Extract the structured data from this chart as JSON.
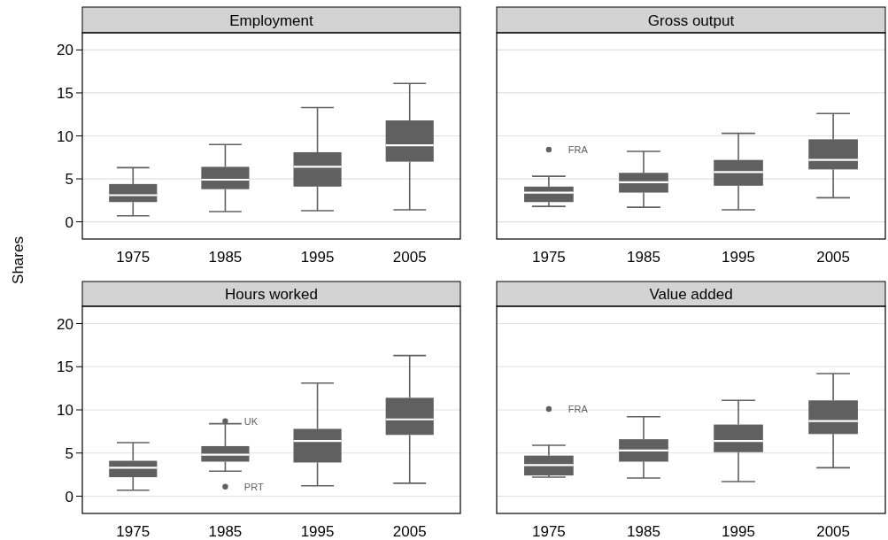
{
  "chart_data": [
    {
      "type": "box",
      "title": "Employment",
      "ylabel": "Shares",
      "categories": [
        "1975",
        "1985",
        "1995",
        "2005"
      ],
      "ylim": [
        -2,
        22
      ],
      "yticks": [
        0,
        5,
        10,
        15,
        20
      ],
      "grid": "y",
      "series": [
        {
          "color": "#606060",
          "boxes": [
            {
              "low": 0.7,
              "q1": 2.3,
              "median": 3.1,
              "q3": 4.4,
              "high": 6.3
            },
            {
              "low": 1.2,
              "q1": 3.8,
              "median": 4.9,
              "q3": 6.4,
              "high": 9.0
            },
            {
              "low": 1.3,
              "q1": 4.1,
              "median": 6.4,
              "q3": 8.1,
              "high": 13.3
            },
            {
              "low": 1.4,
              "q1": 7.0,
              "median": 8.9,
              "q3": 11.8,
              "high": 16.1
            }
          ]
        }
      ]
    },
    {
      "type": "box",
      "title": "Gross output",
      "categories": [
        "1975",
        "1985",
        "1995",
        "2005"
      ],
      "ylim": [
        -2,
        22
      ],
      "yticks": [
        0,
        5,
        10,
        15,
        20
      ],
      "grid": "y",
      "tick_labels": "x",
      "annotations": [
        "FRA"
      ],
      "series": [
        {
          "color": "#606060",
          "boxes": [
            {
              "low": 1.8,
              "q1": 2.3,
              "median": 3.4,
              "q3": 4.1,
              "high": 5.3,
              "outliers": [
                8.4
              ]
            },
            {
              "low": 1.7,
              "q1": 3.4,
              "median": 4.6,
              "q3": 5.7,
              "high": 8.2
            },
            {
              "low": 1.4,
              "q1": 4.2,
              "median": 5.8,
              "q3": 7.2,
              "high": 10.3
            },
            {
              "low": 2.8,
              "q1": 6.1,
              "median": 7.2,
              "q3": 9.6,
              "high": 12.6
            }
          ]
        }
      ]
    },
    {
      "type": "box",
      "title": "Hours worked",
      "categories": [
        "1975",
        "1985",
        "1995",
        "2005"
      ],
      "ylim": [
        -2,
        22
      ],
      "yticks": [
        0,
        5,
        10,
        15,
        20
      ],
      "grid": "y",
      "annotations": [
        "UK",
        "PRT"
      ],
      "series": [
        {
          "color": "#606060",
          "boxes": [
            {
              "low": 0.7,
              "q1": 2.2,
              "median": 3.3,
              "q3": 4.1,
              "high": 6.2
            },
            {
              "low": 2.9,
              "q1": 4.0,
              "median": 4.8,
              "q3": 5.8,
              "high": 8.4,
              "outliers": [
                8.7,
                1.1
              ]
            },
            {
              "low": 1.2,
              "q1": 3.9,
              "median": 6.4,
              "q3": 7.8,
              "high": 13.1
            },
            {
              "low": 1.5,
              "q1": 7.1,
              "median": 8.9,
              "q3": 11.4,
              "high": 16.3
            }
          ]
        }
      ]
    },
    {
      "type": "box",
      "title": "Value added",
      "categories": [
        "1975",
        "1985",
        "1995",
        "2005"
      ],
      "ylim": [
        -2,
        22
      ],
      "yticks": [
        0,
        5,
        10,
        15,
        20
      ],
      "grid": "y",
      "tick_labels": "x",
      "annotations": [
        "FRA"
      ],
      "series": [
        {
          "color": "#606060",
          "boxes": [
            {
              "low": 2.2,
              "q1": 2.4,
              "median": 3.6,
              "q3": 4.7,
              "high": 5.9,
              "outliers": [
                10.1
              ]
            },
            {
              "low": 2.1,
              "q1": 4.0,
              "median": 5.3,
              "q3": 6.6,
              "high": 9.2
            },
            {
              "low": 1.7,
              "q1": 5.1,
              "median": 6.4,
              "q3": 8.3,
              "high": 11.1
            },
            {
              "low": 3.3,
              "q1": 7.2,
              "median": 8.7,
              "q3": 11.1,
              "high": 14.2
            }
          ]
        }
      ]
    }
  ]
}
